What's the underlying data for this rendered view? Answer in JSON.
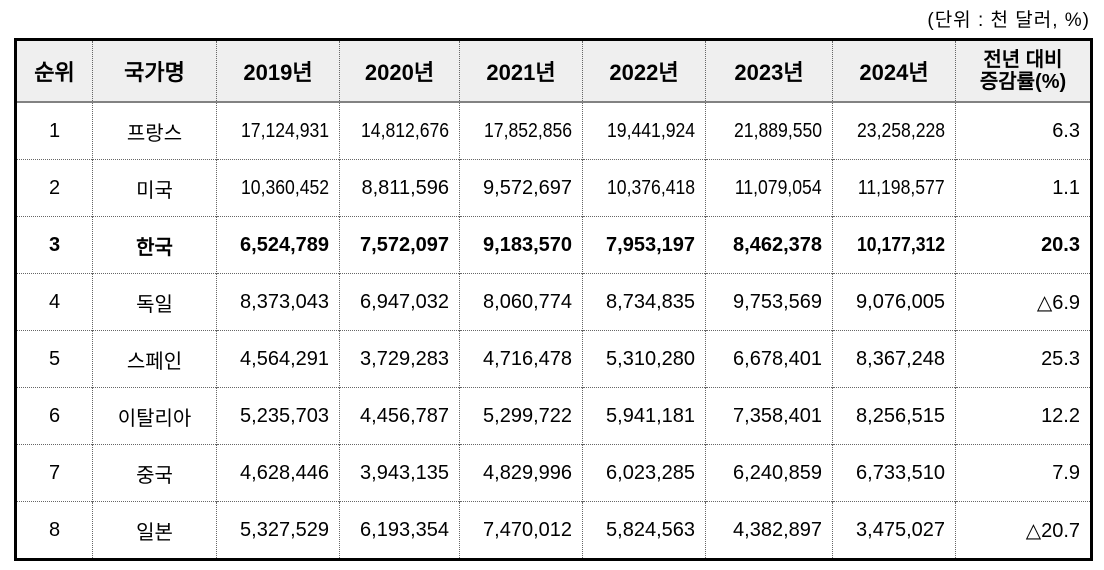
{
  "unit_label": "(단위 : 천 달러, %)",
  "table": {
    "columns": [
      {
        "key": "rank",
        "label": "순위"
      },
      {
        "key": "country",
        "label": "국가명"
      },
      {
        "key": "y2019",
        "label": "2019년"
      },
      {
        "key": "y2020",
        "label": "2020년"
      },
      {
        "key": "y2021",
        "label": "2021년"
      },
      {
        "key": "y2022",
        "label": "2022년"
      },
      {
        "key": "y2023",
        "label": "2023년"
      },
      {
        "key": "y2024",
        "label": "2024년"
      },
      {
        "key": "change",
        "label": "전년 대비\n증감률(%)"
      }
    ],
    "rows": [
      {
        "rank": "1",
        "country": "프랑스",
        "values": [
          "17,124,931",
          "14,812,676",
          "17,852,856",
          "19,441,924",
          "21,889,550",
          "23,258,228"
        ],
        "change": "6.3",
        "emphasis": false
      },
      {
        "rank": "2",
        "country": "미국",
        "values": [
          "10,360,452",
          "8,811,596",
          "9,572,697",
          "10,376,418",
          "11,079,054",
          "11,198,577"
        ],
        "change": "1.1",
        "emphasis": false
      },
      {
        "rank": "3",
        "country": "한국",
        "values": [
          "6,524,789",
          "7,572,097",
          "9,183,570",
          "7,953,197",
          "8,462,378",
          "10,177,312"
        ],
        "change": "20.3",
        "emphasis": true
      },
      {
        "rank": "4",
        "country": "독일",
        "values": [
          "8,373,043",
          "6,947,032",
          "8,060,774",
          "8,734,835",
          "9,753,569",
          "9,076,005"
        ],
        "change": "△6.9",
        "emphasis": false
      },
      {
        "rank": "5",
        "country": "스페인",
        "values": [
          "4,564,291",
          "3,729,283",
          "4,716,478",
          "5,310,280",
          "6,678,401",
          "8,367,248"
        ],
        "change": "25.3",
        "emphasis": false
      },
      {
        "rank": "6",
        "country": "이탈리아",
        "values": [
          "5,235,703",
          "4,456,787",
          "5,299,722",
          "5,941,181",
          "7,358,401",
          "8,256,515"
        ],
        "change": "12.2",
        "emphasis": false
      },
      {
        "rank": "7",
        "country": "중국",
        "values": [
          "4,628,446",
          "3,943,135",
          "4,829,996",
          "6,023,285",
          "6,240,859",
          "6,733,510"
        ],
        "change": "7.9",
        "emphasis": false
      },
      {
        "rank": "8",
        "country": "일본",
        "values": [
          "5,327,529",
          "6,193,354",
          "7,470,012",
          "5,824,563",
          "4,382,897",
          "3,475,027"
        ],
        "change": "△20.7",
        "emphasis": false
      }
    ]
  }
}
